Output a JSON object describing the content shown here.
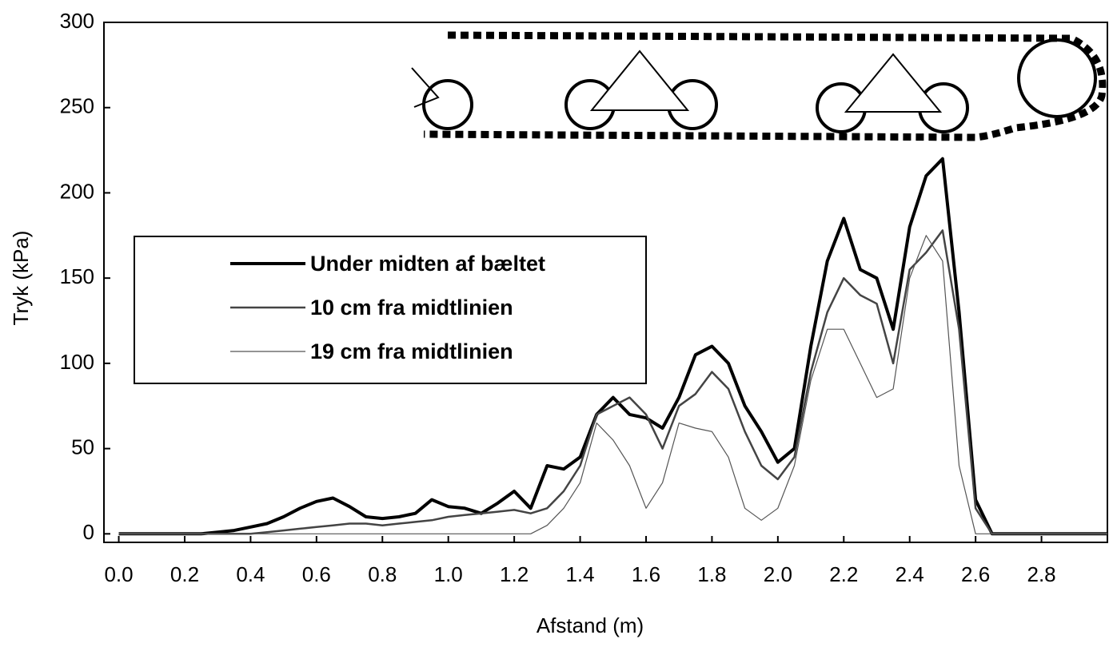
{
  "chart_data": {
    "type": "line",
    "xlabel": "Afstand (m)",
    "ylabel": "Tryk (kPa)",
    "x": [
      0,
      0.05,
      0.1,
      0.15,
      0.2,
      0.25,
      0.3,
      0.35,
      0.4,
      0.45,
      0.5,
      0.55,
      0.6,
      0.65,
      0.7,
      0.75,
      0.8,
      0.85,
      0.9,
      0.95,
      1.0,
      1.05,
      1.1,
      1.15,
      1.2,
      1.25,
      1.3,
      1.35,
      1.4,
      1.45,
      1.5,
      1.55,
      1.6,
      1.65,
      1.7,
      1.75,
      1.8,
      1.85,
      1.9,
      1.95,
      2.0,
      2.05,
      2.1,
      2.15,
      2.2,
      2.25,
      2.3,
      2.35,
      2.4,
      2.45,
      2.5,
      2.55,
      2.6,
      2.65,
      2.7,
      2.75,
      2.8,
      2.85,
      2.9,
      2.95,
      3.0
    ],
    "series": [
      {
        "name": "Under midten af bæltet",
        "color": "#000000",
        "width": 4,
        "values": [
          0,
          0,
          0,
          0,
          0,
          0,
          1,
          2,
          4,
          6,
          10,
          15,
          19,
          21,
          16,
          10,
          9,
          10,
          12,
          20,
          16,
          15,
          12,
          18,
          25,
          15,
          40,
          38,
          45,
          70,
          80,
          70,
          68,
          62,
          80,
          105,
          110,
          100,
          75,
          60,
          42,
          50,
          110,
          160,
          185,
          155,
          150,
          120,
          180,
          210,
          220,
          130,
          20,
          0,
          0,
          0,
          0,
          0,
          0,
          0,
          0
        ]
      },
      {
        "name": "10 cm fra midtlinien",
        "color": "#444444",
        "width": 2.5,
        "values": [
          0,
          0,
          0,
          0,
          0,
          0,
          0,
          0,
          0,
          1,
          2,
          3,
          4,
          5,
          6,
          6,
          5,
          6,
          7,
          8,
          10,
          11,
          12,
          13,
          14,
          12,
          15,
          25,
          40,
          70,
          75,
          80,
          70,
          50,
          75,
          82,
          95,
          85,
          60,
          40,
          32,
          45,
          95,
          130,
          150,
          140,
          135,
          100,
          155,
          165,
          178,
          120,
          15,
          0,
          0,
          0,
          0,
          0,
          0,
          0,
          0
        ]
      },
      {
        "name": "19 cm fra midtlinien",
        "color": "#555555",
        "width": 1.2,
        "values": [
          0,
          0,
          0,
          0,
          0,
          0,
          0,
          0,
          0,
          0,
          0,
          0,
          0,
          0,
          0,
          0,
          0,
          0,
          0,
          0,
          0,
          0,
          0,
          0,
          0,
          0,
          5,
          15,
          30,
          65,
          55,
          40,
          15,
          30,
          65,
          62,
          60,
          45,
          15,
          8,
          15,
          40,
          90,
          120,
          120,
          100,
          80,
          85,
          150,
          175,
          160,
          40,
          0,
          0,
          0,
          0,
          0,
          0,
          0,
          0,
          0
        ]
      }
    ],
    "xlim": [
      -0.045,
      3.0
    ],
    "ylim": [
      -5,
      300
    ],
    "xticks": [
      {
        "value": 0,
        "label": "0.0"
      },
      0.2,
      0.4,
      0.6,
      0.8,
      {
        "value": 1,
        "label": "1.0"
      },
      1.2,
      1.4,
      1.6,
      1.8,
      {
        "value": 2,
        "label": "2.0"
      },
      2.2,
      2.4,
      2.6,
      2.8
    ],
    "yticks": [
      0,
      50,
      100,
      150,
      200,
      250,
      300
    ]
  }
}
